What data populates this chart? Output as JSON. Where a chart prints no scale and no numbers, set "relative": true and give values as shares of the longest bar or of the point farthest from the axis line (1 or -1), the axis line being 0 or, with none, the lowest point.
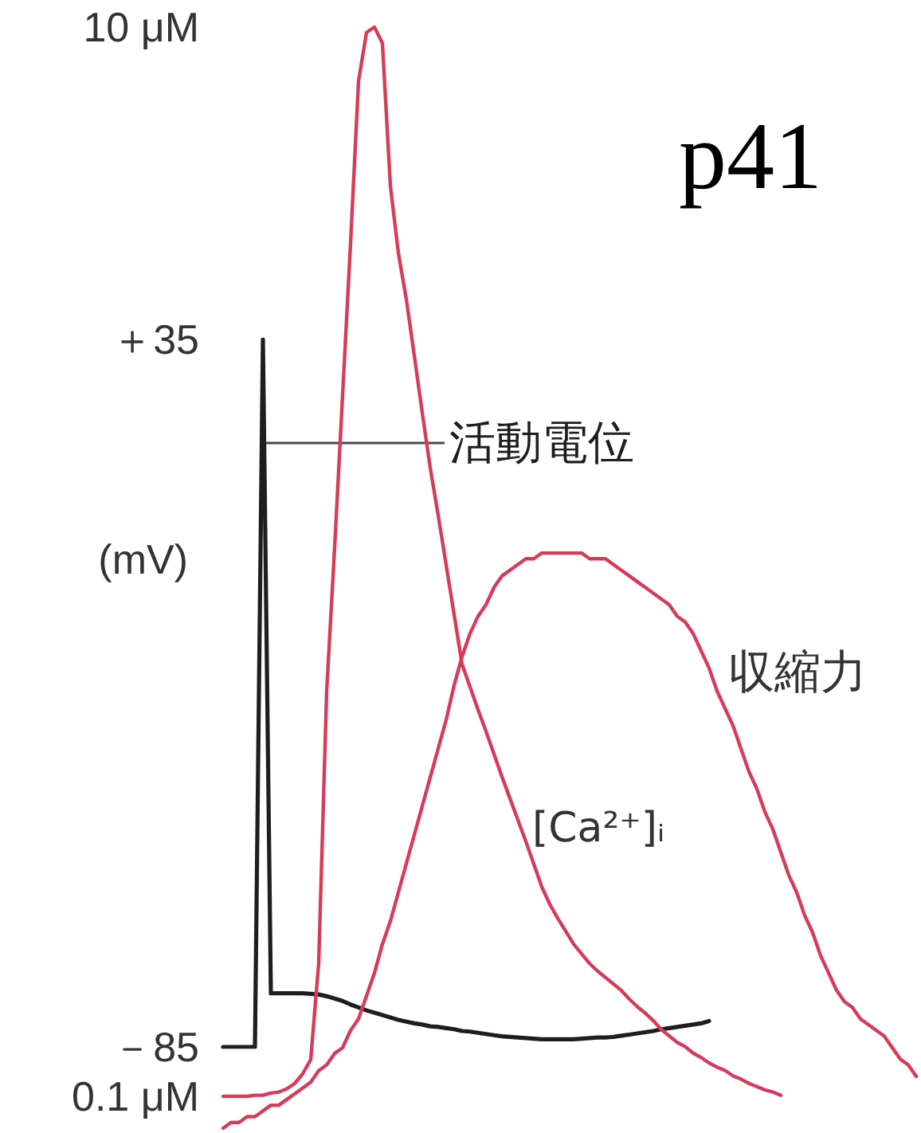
{
  "chart_data": [
    {
      "type": "line",
      "categories": [
        null,
        null,
        null,
        null,
        null,
        null,
        null,
        null,
        null,
        null,
        null,
        null,
        null,
        null,
        null,
        null,
        null,
        null,
        null,
        null,
        null,
        null,
        null,
        null,
        null,
        null,
        null,
        null,
        null,
        null,
        null,
        null,
        null,
        null,
        null,
        null,
        null,
        null,
        null,
        null,
        null,
        null,
        null,
        null,
        null,
        null,
        null,
        null,
        null,
        null,
        null,
        null,
        null,
        null,
        null,
        null,
        null,
        null,
        null,
        null,
        null,
        null
      ],
      "series": [
        {
          "name": "活動電位",
          "color": "#1e1e1e",
          "values": [
            -85,
            -85,
            -85,
            -85,
            -85,
            35,
            -75.9,
            -75.9,
            -75.9,
            -75.9,
            -75.9,
            -76.0,
            -76.1,
            -76.4,
            -76.8,
            -77.2,
            -77.8,
            -78.3,
            -78.8,
            -79.2,
            -79.6,
            -80.0,
            -80.4,
            -80.7,
            -81.0,
            -81.2,
            -81.5,
            -81.6,
            -81.8,
            -82.0,
            -82.3,
            -82.4,
            -82.6,
            -82.8,
            -83.0,
            -83.2,
            -83.3,
            -83.4,
            -83.5,
            -83.6,
            -83.7,
            -83.7,
            -83.7,
            -83.7,
            -83.7,
            -83.6,
            -83.5,
            -83.4,
            -83.4,
            -83.3,
            -83.1,
            -82.9,
            -82.7,
            -82.5,
            -82.3,
            -82.0,
            -81.8,
            -81.6,
            -81.4,
            -81.2,
            -81.0,
            -80.6
          ]
        }
      ],
      "ylabel": "(mV)",
      "ylim": [
        -85,
        35
      ],
      "yticks": [
        {
          "value": 35,
          "label": "＋35"
        },
        {
          "value": -85,
          "label": "－85"
        }
      ],
      "legend": false,
      "grid": false,
      "marker": "none",
      "tick_labels": "y"
    },
    {
      "type": "line",
      "categories": [
        null,
        null,
        null,
        null,
        null,
        null,
        null,
        null,
        null,
        null,
        null,
        null,
        null,
        null,
        null,
        null,
        null,
        null,
        null,
        null,
        null,
        null,
        null,
        null,
        null,
        null,
        null,
        null,
        null,
        null,
        null,
        null,
        null,
        null,
        null,
        null,
        null,
        null,
        null,
        null,
        null,
        null,
        null,
        null,
        null,
        null,
        null,
        null,
        null,
        null,
        null,
        null,
        null,
        null,
        null,
        null,
        null,
        null,
        null,
        null,
        null,
        null,
        null,
        null,
        null,
        null,
        null,
        null,
        null,
        null,
        null
      ],
      "series": [
        {
          "name": "[Ca²⁺]ᵢ",
          "color": "#d63c58",
          "values": [
            0.1,
            0.1,
            0.1,
            0.1,
            0.11,
            0.11,
            0.13,
            0.14,
            0.17,
            0.22,
            0.31,
            0.44,
            1.33,
            3.85,
            5.18,
            6.59,
            8.0,
            9.5,
            9.95,
            10,
            9.85,
            8.53,
            7.91,
            7.48,
            6.96,
            6.43,
            5.92,
            5.48,
            5.02,
            4.56,
            4.1,
            3.89,
            3.68,
            3.48,
            3.27,
            3.06,
            2.86,
            2.66,
            2.46,
            2.25,
            2.04,
            1.88,
            1.75,
            1.63,
            1.51,
            1.42,
            1.33,
            1.26,
            1.2,
            1.14,
            1.08,
            1.0,
            0.93,
            0.87,
            0.8,
            0.72,
            0.66,
            0.6,
            0.56,
            0.5,
            0.46,
            0.41,
            0.37,
            0.34,
            0.29,
            0.26,
            0.22,
            0.19,
            0.16,
            0.14,
            0.11
          ]
        }
      ],
      "ylim": [
        0.1,
        10
      ],
      "yticks": [
        {
          "value": 0.1,
          "label": "0.1 μM"
        },
        {
          "value": 10,
          "label": "10 μM"
        }
      ],
      "legend": false,
      "grid": false,
      "marker": "none",
      "tick_labels": "y"
    },
    {
      "type": "line",
      "relative": true,
      "categories": [
        null,
        null,
        null,
        null,
        null,
        null,
        null,
        null,
        null,
        null,
        null,
        null,
        null,
        null,
        null,
        null,
        null,
        null,
        null,
        null,
        null,
        null,
        null,
        null,
        null,
        null,
        null,
        null,
        null,
        null,
        null,
        null,
        null,
        null,
        null,
        null,
        null,
        null,
        null,
        null,
        null,
        null,
        null,
        null,
        null,
        null,
        null,
        null,
        null,
        null,
        null,
        null,
        null,
        null,
        null,
        null,
        null,
        null,
        null,
        null,
        null,
        null,
        null,
        null,
        null,
        null,
        null,
        null,
        null,
        null,
        null,
        null,
        null,
        null,
        null,
        null,
        null,
        null,
        null,
        null,
        null,
        null,
        null,
        null,
        null,
        null,
        null,
        null
      ],
      "series": [
        {
          "name": "収縮力",
          "color": "#d63c58",
          "values": [
            0,
            0.01,
            0.01,
            0.02,
            0.02,
            0.03,
            0.04,
            0.04,
            0.05,
            0.06,
            0.07,
            0.08,
            0.1,
            0.11,
            0.13,
            0.14,
            0.17,
            0.19,
            0.23,
            0.27,
            0.32,
            0.36,
            0.41,
            0.46,
            0.51,
            0.56,
            0.61,
            0.66,
            0.71,
            0.77,
            0.82,
            0.86,
            0.89,
            0.91,
            0.94,
            0.96,
            0.97,
            0.98,
            0.99,
            0.99,
            1,
            1,
            1,
            1,
            1,
            1,
            0.99,
            0.99,
            0.99,
            0.98,
            0.97,
            0.96,
            0.95,
            0.94,
            0.93,
            0.92,
            0.91,
            0.89,
            0.88,
            0.86,
            0.83,
            0.8,
            0.76,
            0.73,
            0.7,
            0.66,
            0.62,
            0.59,
            0.55,
            0.52,
            0.48,
            0.44,
            0.41,
            0.37,
            0.34,
            0.3,
            0.27,
            0.24,
            0.22,
            0.21,
            0.19,
            0.18,
            0.17,
            0.16,
            0.14,
            0.12,
            0.11,
            0.09
          ]
        }
      ],
      "annotations": [
        "p41"
      ],
      "legend": false,
      "grid": false,
      "marker": "none",
      "tick_labels": false
    }
  ]
}
